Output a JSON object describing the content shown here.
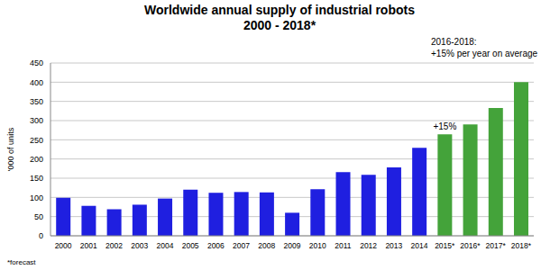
{
  "chart_data": {
    "type": "bar",
    "title": "Worldwide annual supply of industrial robots",
    "subtitle": "2000 - 2018*",
    "y_label": "'000 of units",
    "categories": [
      "2000",
      "2001",
      "2002",
      "2003",
      "2004",
      "2005",
      "2006",
      "2007",
      "2008",
      "2009",
      "2010",
      "2011",
      "2012",
      "2013",
      "2014",
      "2015*",
      "2016*",
      "2017*",
      "2018*"
    ],
    "values": [
      99,
      78,
      69,
      81,
      97,
      120,
      112,
      114,
      113,
      60,
      121,
      166,
      159,
      178,
      229,
      264,
      290,
      333,
      400
    ],
    "colors": [
      "#1f1fe0",
      "#1f1fe0",
      "#1f1fe0",
      "#1f1fe0",
      "#1f1fe0",
      "#1f1fe0",
      "#1f1fe0",
      "#1f1fe0",
      "#1f1fe0",
      "#1f1fe0",
      "#1f1fe0",
      "#1f1fe0",
      "#1f1fe0",
      "#1f1fe0",
      "#1f1fe0",
      "#44a33a",
      "#44a33a",
      "#44a33a",
      "#44a33a"
    ],
    "ylim": [
      0,
      450
    ],
    "yticks": [
      0,
      50,
      100,
      150,
      200,
      250,
      300,
      350,
      400,
      450
    ],
    "grid": true,
    "annotations": [
      {
        "text": "2016-2018:"
      },
      {
        "text": "+15% per year on average"
      },
      {
        "text": "+15%",
        "category": "2015*"
      }
    ],
    "footnote": "*forecast"
  }
}
